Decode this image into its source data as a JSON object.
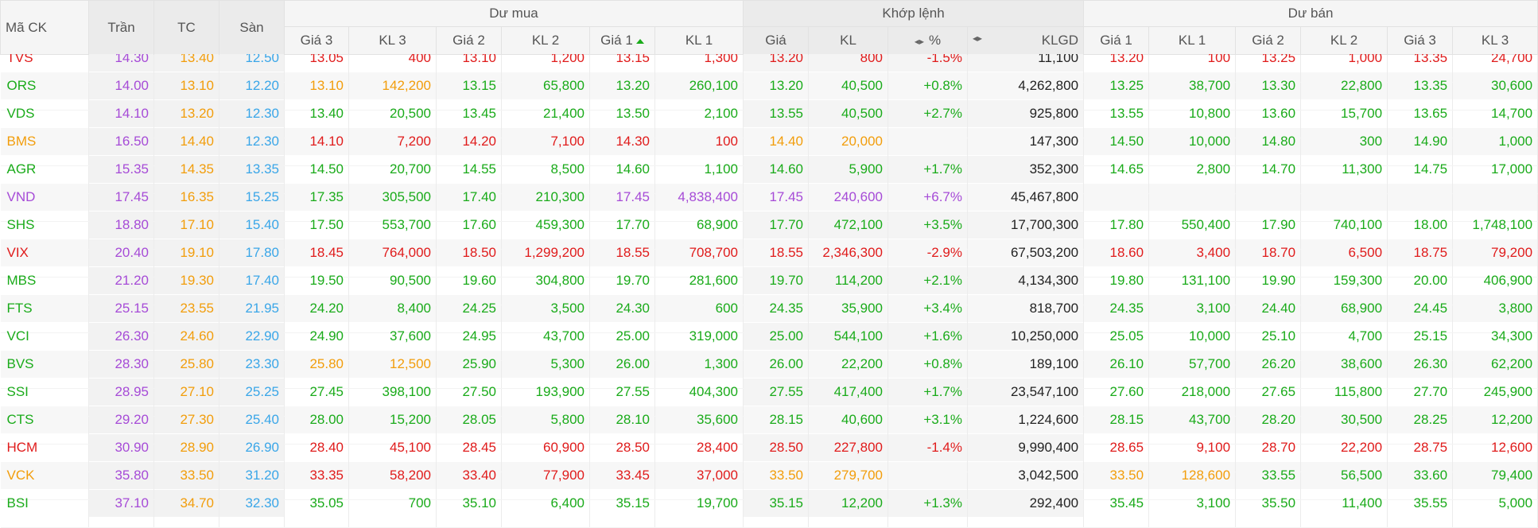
{
  "headers": {
    "symbol": "Mã CK",
    "ceiling": "Trần",
    "reference": "TC",
    "floor": "Sàn",
    "bid_group": "Dư mua",
    "match_group": "Khớp lệnh",
    "ask_group": "Dư bán",
    "bid": [
      "Giá 3",
      "KL 3",
      "Giá 2",
      "KL 2",
      "Giá 1",
      "KL 1"
    ],
    "match": [
      "Giá",
      "KL",
      "%",
      "KLGD"
    ],
    "ask": [
      "Giá 1",
      "KL 1",
      "Giá 2",
      "KL 2",
      "Giá 3",
      "KL 3"
    ]
  },
  "colors": {
    "up": "#1aab1a",
    "down": "#e01b1b",
    "ref": "#f29d0b",
    "ceil": "#a64bd7",
    "floor": "#3aa6e8"
  },
  "rows": [
    {
      "symbol": "TVS",
      "ceil": "14.30",
      "ref": "13.40",
      "floor": "12.50",
      "b3": "13.05",
      "bv3": "400",
      "b2": "13.10",
      "bv2": "1,200",
      "b1": "13.15",
      "bv1": "1,300",
      "mp": "13.20",
      "mv": "800",
      "pct": "-1.5%",
      "vol": "11,100",
      "a1": "13.20",
      "av1": "100",
      "a2": "13.25",
      "av2": "1,000",
      "a3": "13.35",
      "av3": "24,700",
      "c": {
        "sym": "down",
        "b3": "down",
        "b2": "down",
        "b1": "down",
        "m": "down",
        "a1": "down",
        "a2": "down",
        "a3": "down"
      }
    },
    {
      "symbol": "ORS",
      "ceil": "14.00",
      "ref": "13.10",
      "floor": "12.20",
      "b3": "13.10",
      "bv3": "142,200",
      "b2": "13.15",
      "bv2": "65,800",
      "b1": "13.20",
      "bv1": "260,100",
      "mp": "13.20",
      "mv": "40,500",
      "pct": "+0.8%",
      "vol": "4,262,800",
      "a1": "13.25",
      "av1": "38,700",
      "a2": "13.30",
      "av2": "22,800",
      "a3": "13.35",
      "av3": "30,600",
      "c": {
        "sym": "up",
        "b3": "ref",
        "b2": "up",
        "b1": "up",
        "m": "up",
        "a1": "up",
        "a2": "up",
        "a3": "up"
      }
    },
    {
      "symbol": "VDS",
      "ceil": "14.10",
      "ref": "13.20",
      "floor": "12.30",
      "b3": "13.40",
      "bv3": "20,500",
      "b2": "13.45",
      "bv2": "21,400",
      "b1": "13.50",
      "bv1": "2,100",
      "mp": "13.55",
      "mv": "40,500",
      "pct": "+2.7%",
      "vol": "925,800",
      "a1": "13.55",
      "av1": "10,800",
      "a2": "13.60",
      "av2": "15,700",
      "a3": "13.65",
      "av3": "14,700",
      "c": {
        "sym": "up",
        "b3": "up",
        "b2": "up",
        "b1": "up",
        "m": "up",
        "a1": "up",
        "a2": "up",
        "a3": "up"
      }
    },
    {
      "symbol": "BMS",
      "ceil": "16.50",
      "ref": "14.40",
      "floor": "12.30",
      "b3": "14.10",
      "bv3": "7,200",
      "b2": "14.20",
      "bv2": "7,100",
      "b1": "14.30",
      "bv1": "100",
      "mp": "14.40",
      "mv": "20,000",
      "pct": "",
      "vol": "147,300",
      "a1": "14.50",
      "av1": "10,000",
      "a2": "14.80",
      "av2": "300",
      "a3": "14.90",
      "av3": "1,000",
      "c": {
        "sym": "ref",
        "b3": "down",
        "b2": "down",
        "b1": "down",
        "m": "ref",
        "a1": "up",
        "a2": "up",
        "a3": "up"
      }
    },
    {
      "symbol": "AGR",
      "ceil": "15.35",
      "ref": "14.35",
      "floor": "13.35",
      "b3": "14.50",
      "bv3": "20,700",
      "b2": "14.55",
      "bv2": "8,500",
      "b1": "14.60",
      "bv1": "1,100",
      "mp": "14.60",
      "mv": "5,900",
      "pct": "+1.7%",
      "vol": "352,300",
      "a1": "14.65",
      "av1": "2,800",
      "a2": "14.70",
      "av2": "11,300",
      "a3": "14.75",
      "av3": "17,000",
      "c": {
        "sym": "up",
        "b3": "up",
        "b2": "up",
        "b1": "up",
        "m": "up",
        "a1": "up",
        "a2": "up",
        "a3": "up"
      }
    },
    {
      "symbol": "VND",
      "ceil": "17.45",
      "ref": "16.35",
      "floor": "15.25",
      "b3": "17.35",
      "bv3": "305,500",
      "b2": "17.40",
      "bv2": "210,300",
      "b1": "17.45",
      "bv1": "4,838,400",
      "mp": "17.45",
      "mv": "240,600",
      "pct": "+6.7%",
      "vol": "45,467,800",
      "a1": "",
      "av1": "",
      "a2": "",
      "av2": "",
      "a3": "",
      "av3": "",
      "c": {
        "sym": "ceil",
        "b3": "up",
        "b2": "up",
        "b1": "ceil",
        "m": "ceil",
        "a1": "up",
        "a2": "up",
        "a3": "up"
      }
    },
    {
      "symbol": "SHS",
      "ceil": "18.80",
      "ref": "17.10",
      "floor": "15.40",
      "b3": "17.50",
      "bv3": "553,700",
      "b2": "17.60",
      "bv2": "459,300",
      "b1": "17.70",
      "bv1": "68,900",
      "mp": "17.70",
      "mv": "472,100",
      "pct": "+3.5%",
      "vol": "17,700,300",
      "a1": "17.80",
      "av1": "550,400",
      "a2": "17.90",
      "av2": "740,100",
      "a3": "18.00",
      "av3": "1,748,100",
      "c": {
        "sym": "up",
        "b3": "up",
        "b2": "up",
        "b1": "up",
        "m": "up",
        "a1": "up",
        "a2": "up",
        "a3": "up"
      }
    },
    {
      "symbol": "VIX",
      "ceil": "20.40",
      "ref": "19.10",
      "floor": "17.80",
      "b3": "18.45",
      "bv3": "764,000",
      "b2": "18.50",
      "bv2": "1,299,200",
      "b1": "18.55",
      "bv1": "708,700",
      "mp": "18.55",
      "mv": "2,346,300",
      "pct": "-2.9%",
      "vol": "67,503,200",
      "a1": "18.60",
      "av1": "3,400",
      "a2": "18.70",
      "av2": "6,500",
      "a3": "18.75",
      "av3": "79,200",
      "c": {
        "sym": "down",
        "b3": "down",
        "b2": "down",
        "b1": "down",
        "m": "down",
        "a1": "down",
        "a2": "down",
        "a3": "down"
      }
    },
    {
      "symbol": "MBS",
      "ceil": "21.20",
      "ref": "19.30",
      "floor": "17.40",
      "b3": "19.50",
      "bv3": "90,500",
      "b2": "19.60",
      "bv2": "304,800",
      "b1": "19.70",
      "bv1": "281,600",
      "mp": "19.70",
      "mv": "114,200",
      "pct": "+2.1%",
      "vol": "4,134,300",
      "a1": "19.80",
      "av1": "131,100",
      "a2": "19.90",
      "av2": "159,300",
      "a3": "20.00",
      "av3": "406,900",
      "c": {
        "sym": "up",
        "b3": "up",
        "b2": "up",
        "b1": "up",
        "m": "up",
        "a1": "up",
        "a2": "up",
        "a3": "up"
      }
    },
    {
      "symbol": "FTS",
      "ceil": "25.15",
      "ref": "23.55",
      "floor": "21.95",
      "b3": "24.20",
      "bv3": "8,400",
      "b2": "24.25",
      "bv2": "3,500",
      "b1": "24.30",
      "bv1": "600",
      "mp": "24.35",
      "mv": "35,900",
      "pct": "+3.4%",
      "vol": "818,700",
      "a1": "24.35",
      "av1": "3,100",
      "a2": "24.40",
      "av2": "68,900",
      "a3": "24.45",
      "av3": "3,800",
      "c": {
        "sym": "up",
        "b3": "up",
        "b2": "up",
        "b1": "up",
        "m": "up",
        "a1": "up",
        "a2": "up",
        "a3": "up"
      }
    },
    {
      "symbol": "VCI",
      "ceil": "26.30",
      "ref": "24.60",
      "floor": "22.90",
      "b3": "24.90",
      "bv3": "37,600",
      "b2": "24.95",
      "bv2": "43,700",
      "b1": "25.00",
      "bv1": "319,000",
      "mp": "25.00",
      "mv": "544,100",
      "pct": "+1.6%",
      "vol": "10,250,000",
      "a1": "25.05",
      "av1": "10,000",
      "a2": "25.10",
      "av2": "4,700",
      "a3": "25.15",
      "av3": "34,300",
      "c": {
        "sym": "up",
        "b3": "up",
        "b2": "up",
        "b1": "up",
        "m": "up",
        "a1": "up",
        "a2": "up",
        "a3": "up"
      }
    },
    {
      "symbol": "BVS",
      "ceil": "28.30",
      "ref": "25.80",
      "floor": "23.30",
      "b3": "25.80",
      "bv3": "12,500",
      "b2": "25.90",
      "bv2": "5,300",
      "b1": "26.00",
      "bv1": "1,300",
      "mp": "26.00",
      "mv": "22,200",
      "pct": "+0.8%",
      "vol": "189,100",
      "a1": "26.10",
      "av1": "57,700",
      "a2": "26.20",
      "av2": "38,600",
      "a3": "26.30",
      "av3": "62,200",
      "c": {
        "sym": "up",
        "b3": "ref",
        "b2": "up",
        "b1": "up",
        "m": "up",
        "a1": "up",
        "a2": "up",
        "a3": "up"
      }
    },
    {
      "symbol": "SSI",
      "ceil": "28.95",
      "ref": "27.10",
      "floor": "25.25",
      "b3": "27.45",
      "bv3": "398,100",
      "b2": "27.50",
      "bv2": "193,900",
      "b1": "27.55",
      "bv1": "404,300",
      "mp": "27.55",
      "mv": "417,400",
      "pct": "+1.7%",
      "vol": "23,547,100",
      "a1": "27.60",
      "av1": "218,000",
      "a2": "27.65",
      "av2": "115,800",
      "a3": "27.70",
      "av3": "245,900",
      "c": {
        "sym": "up",
        "b3": "up",
        "b2": "up",
        "b1": "up",
        "m": "up",
        "a1": "up",
        "a2": "up",
        "a3": "up"
      }
    },
    {
      "symbol": "CTS",
      "ceil": "29.20",
      "ref": "27.30",
      "floor": "25.40",
      "b3": "28.00",
      "bv3": "15,200",
      "b2": "28.05",
      "bv2": "5,800",
      "b1": "28.10",
      "bv1": "35,600",
      "mp": "28.15",
      "mv": "40,600",
      "pct": "+3.1%",
      "vol": "1,224,600",
      "a1": "28.15",
      "av1": "43,700",
      "a2": "28.20",
      "av2": "30,500",
      "a3": "28.25",
      "av3": "12,200",
      "c": {
        "sym": "up",
        "b3": "up",
        "b2": "up",
        "b1": "up",
        "m": "up",
        "a1": "up",
        "a2": "up",
        "a3": "up"
      }
    },
    {
      "symbol": "HCM",
      "ceil": "30.90",
      "ref": "28.90",
      "floor": "26.90",
      "b3": "28.40",
      "bv3": "45,100",
      "b2": "28.45",
      "bv2": "60,900",
      "b1": "28.50",
      "bv1": "28,400",
      "mp": "28.50",
      "mv": "227,800",
      "pct": "-1.4%",
      "vol": "9,990,400",
      "a1": "28.65",
      "av1": "9,100",
      "a2": "28.70",
      "av2": "22,200",
      "a3": "28.75",
      "av3": "12,600",
      "c": {
        "sym": "down",
        "b3": "down",
        "b2": "down",
        "b1": "down",
        "m": "down",
        "a1": "down",
        "a2": "down",
        "a3": "down"
      }
    },
    {
      "symbol": "VCK",
      "ceil": "35.80",
      "ref": "33.50",
      "floor": "31.20",
      "b3": "33.35",
      "bv3": "58,200",
      "b2": "33.40",
      "bv2": "77,900",
      "b1": "33.45",
      "bv1": "37,000",
      "mp": "33.50",
      "mv": "279,700",
      "pct": "",
      "vol": "3,042,500",
      "a1": "33.50",
      "av1": "128,600",
      "a2": "33.55",
      "av2": "56,500",
      "a3": "33.60",
      "av3": "79,400",
      "c": {
        "sym": "ref",
        "b3": "down",
        "b2": "down",
        "b1": "down",
        "m": "ref",
        "a1": "ref",
        "a2": "up",
        "a3": "up"
      }
    },
    {
      "symbol": "BSI",
      "ceil": "37.10",
      "ref": "34.70",
      "floor": "32.30",
      "b3": "35.05",
      "bv3": "700",
      "b2": "35.10",
      "bv2": "6,400",
      "b1": "35.15",
      "bv1": "19,700",
      "mp": "35.15",
      "mv": "12,200",
      "pct": "+1.3%",
      "vol": "292,400",
      "a1": "35.45",
      "av1": "3,100",
      "a2": "35.50",
      "av2": "11,400",
      "a3": "35.55",
      "av3": "5,000",
      "c": {
        "sym": "up",
        "b3": "up",
        "b2": "up",
        "b1": "up",
        "m": "up",
        "a1": "up",
        "a2": "up",
        "a3": "up"
      }
    }
  ]
}
